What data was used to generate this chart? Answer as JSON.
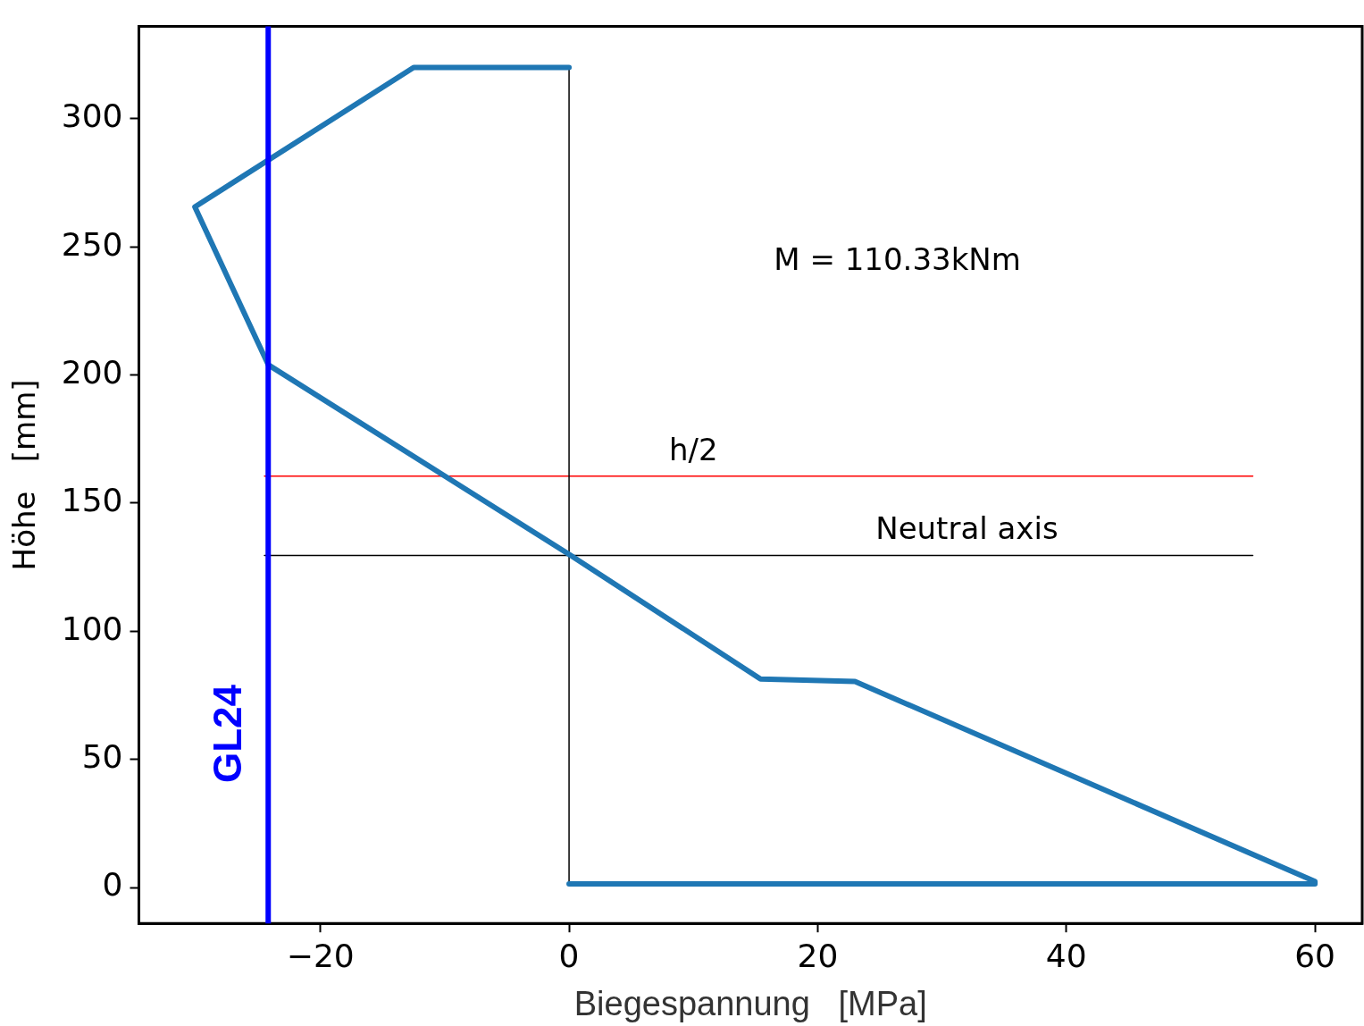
{
  "chart_data": {
    "type": "line",
    "xlabel": "Biegespannung   [MPa]",
    "ylabel": "Höhe   [mm]",
    "xlim": [
      -34.6,
      63.8
    ],
    "ylim": [
      -14,
      336
    ],
    "xticks": [
      -20,
      0,
      20,
      40,
      60
    ],
    "yticks": [
      0,
      50,
      100,
      150,
      200,
      250,
      300
    ],
    "grid": false,
    "legend": false,
    "marker": "none",
    "series": [
      {
        "color": "#1f77b4",
        "x": [
          0,
          60,
          60,
          23,
          15.4,
          0,
          -24.2,
          -30.1,
          -12.5,
          0
        ],
        "values": [
          1.4,
          1.4,
          2.4,
          80.4,
          81.4,
          130,
          204,
          265.6,
          320,
          320
        ]
      },
      {
        "color": "#000000",
        "x": [
          0,
          0
        ],
        "values": [
          1.4,
          320
        ]
      },
      {
        "color": "#ff0000",
        "x": [
          -24.5,
          55
        ],
        "values": [
          160.5,
          160.5
        ]
      },
      {
        "color": "#000000",
        "x": [
          -24.5,
          55
        ],
        "values": [
          129.6,
          129.6
        ]
      }
    ],
    "ref_lines": [
      {
        "axis": "x",
        "value": -24.2,
        "label": "GL24",
        "color": "#0000ff"
      }
    ],
    "annotations": [
      "M = 110.33kNm",
      {
        "text": "h/2",
        "x": 10,
        "y": 160.5
      },
      {
        "text": "Neutral axis",
        "x": 32,
        "y": 129.6
      }
    ]
  }
}
